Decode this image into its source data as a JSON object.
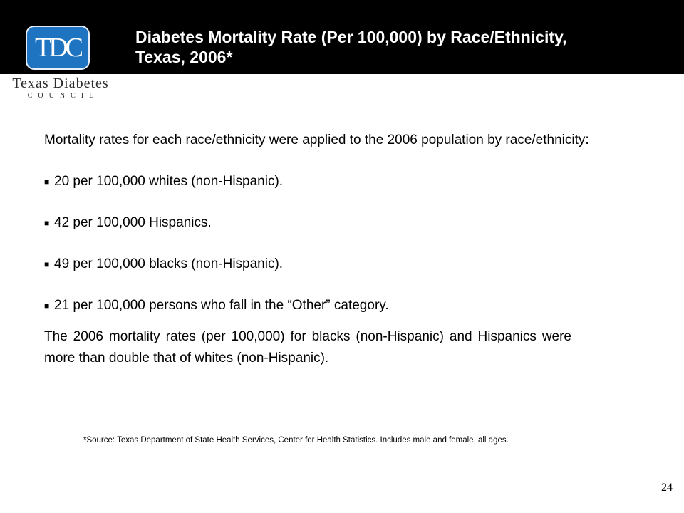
{
  "header": {
    "title_line1": "Diabetes Mortality Rate (Per 100,000) by Race/Ethnicity,",
    "title_line2": "Texas, 2006*"
  },
  "logo": {
    "mark": "TDC",
    "line1": "Texas Diabetes",
    "line2": "COUNCIL"
  },
  "body": {
    "intro": "Mortality rates for each race/ethnicity were applied to the 2006 population by race/ethnicity:",
    "bullets": [
      "20 per 100,000 whites (non-Hispanic).",
      "42 per 100,000 Hispanics.",
      "49 per 100,000 blacks (non-Hispanic).",
      "21 per 100,000 persons who fall in the “Other” category."
    ],
    "conclusion": "The 2006 mortality rates (per 100,000) for blacks (non-Hispanic) and Hispanics were more than double that of whites (non-Hispanic)."
  },
  "source": "*Source: Texas Department of State Health Services, Center for Health Statistics. Includes male and female, all ages.",
  "page_number": "24",
  "colors": {
    "header_bg": "#000000",
    "logo_blue": "#1f74c2"
  }
}
